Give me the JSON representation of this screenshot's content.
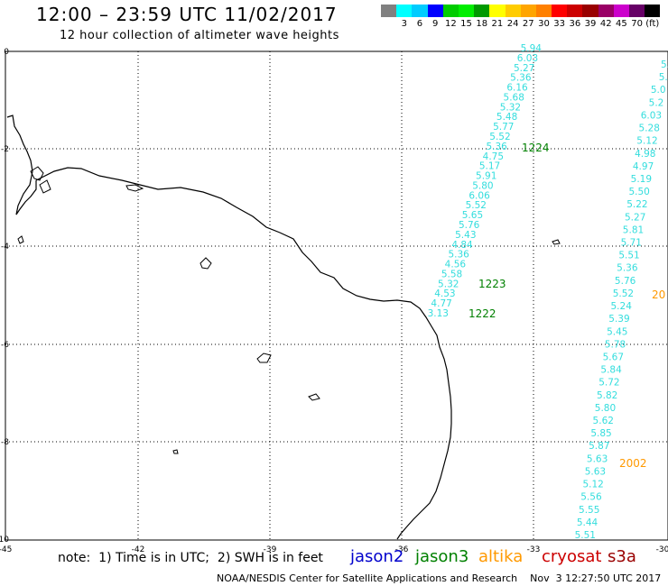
{
  "header": {
    "title": "12:00 – 23:59 UTC 11/02/2017",
    "subtitle": "12 hour collection of altimeter wave heights"
  },
  "scale": {
    "unit": "(ft)",
    "colors": [
      "#808080",
      "#00ffff",
      "#00ccff",
      "#0000ff",
      "#00cc00",
      "#00ee00",
      "#009900",
      "#ffff00",
      "#ffcc00",
      "#ffa500",
      "#ff8000",
      "#ff0000",
      "#cc0000",
      "#990000",
      "#990066",
      "#cc00cc",
      "#660066",
      "#000000"
    ],
    "labels": [
      "3",
      "6",
      "9",
      "12",
      "15",
      "18",
      "21",
      "24",
      "27",
      "30",
      "33",
      "36",
      "39",
      "42",
      "45",
      "70"
    ]
  },
  "map": {
    "lon_ticks": [
      "-45",
      "-42",
      "-39",
      "-36",
      "-33",
      "-30"
    ],
    "lat_ticks": [
      "0",
      "-2",
      "-4",
      "-6",
      "-8",
      "-10"
    ],
    "track_color": "#33dddd",
    "track_a": [
      "5.94",
      "6.03",
      "5.27",
      "5.36",
      "6.16",
      "5.68",
      "5.32",
      "5.48",
      "5.77",
      "5.52",
      "5.36",
      "4.75",
      "5.17",
      "5.91",
      "5.80",
      "6.06",
      "5.52",
      "5.65",
      "5.76",
      "5.43",
      "4.84",
      "5.36",
      "4.56",
      "5.58",
      "5.32",
      "4.53",
      "4.77",
      "3.13"
    ],
    "track_b": [
      "5.",
      "5.",
      "5.0",
      "5.2",
      "6.03",
      "5.28",
      "5.12",
      "4.98",
      "4.97",
      "5.19",
      "5.50",
      "5.22",
      "5.27",
      "5.81",
      "5.71",
      "5.51",
      "5.36",
      "5.76",
      "5.52",
      "5.24",
      "5.39",
      "5.45",
      "5.78",
      "5.67",
      "5.84",
      "5.72",
      "5.82",
      "5.80",
      "5.62",
      "5.85",
      "5.87",
      "5.63",
      "5.63",
      "5.12",
      "5.56",
      "5.55",
      "5.44",
      "5.51"
    ],
    "time_labels": [
      {
        "text": "1224",
        "color": "#008000"
      },
      {
        "text": "1223",
        "color": "#008000"
      },
      {
        "text": "1222",
        "color": "#008000"
      },
      {
        "text": "20",
        "color": "#ff9900"
      },
      {
        "text": "2002",
        "color": "#ff9900"
      }
    ]
  },
  "footer": {
    "note": "note:  1) Time is in UTC;  2) SWH is in feet",
    "satellites": [
      {
        "name": "jason2",
        "color": "#0000cc"
      },
      {
        "name": "jason3",
        "color": "#008000"
      },
      {
        "name": "altika",
        "color": "#ff9900"
      },
      {
        "name": "cryosat",
        "color": "#cc0000"
      },
      {
        "name": "s3a",
        "color": "#990000"
      }
    ],
    "credit": "NOAA/NESDIS Center for Satellite Applications and Research    Nov  3 12:27:50 UTC 2017"
  }
}
